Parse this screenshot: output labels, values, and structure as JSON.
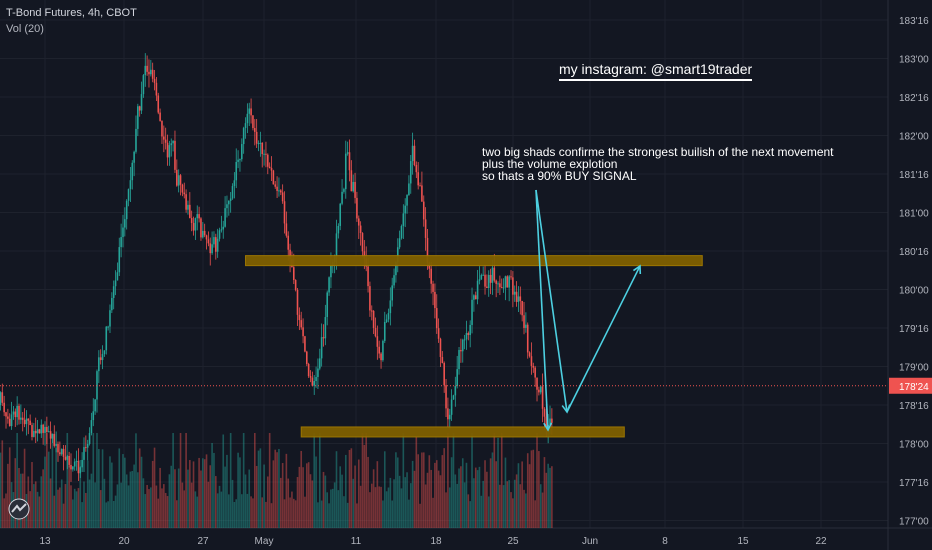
{
  "header": {
    "title": "T-Bond Futures, 4h, CBOT",
    "volume_label": "Vol (20)"
  },
  "annotations": {
    "instagram": "my instagram: @smart19trader",
    "note_lines": [
      "two big shads confirme the strongest  builish of the next movement",
      "plus the volume explotion",
      "so thats a 90% BUY SIGNAL"
    ]
  },
  "colors": {
    "background": "#131722",
    "up": "#26a69a",
    "down": "#ef5350",
    "zone": "#806000",
    "arrow": "#4dd0e1",
    "axis_text": "#b2b5be"
  },
  "chart_data": {
    "type": "candlestick",
    "title": "T-Bond Futures, 4h, CBOT",
    "price_axis_ticks": [
      "183'16",
      "183'00",
      "182'16",
      "182'00",
      "181'16",
      "181'00",
      "180'16",
      "180'00",
      "179'16",
      "179'00",
      "178'16",
      "178'00",
      "177'16",
      "177'00"
    ],
    "time_axis_ticks": [
      "13",
      "20",
      "27",
      "May",
      "11",
      "18",
      "25",
      "Jun",
      "8",
      "15",
      "22"
    ],
    "current_price": "178'24",
    "price_range": [
      176.875,
      183.25
    ],
    "zones": [
      {
        "from_tick": "May 1",
        "to_tick": "Jun 11",
        "price": 180.375
      },
      {
        "from_tick": "May 6",
        "to_tick": "Jun 4",
        "price": 178.15
      }
    ],
    "series": [
      {
        "name": "T-Bond Futures",
        "key_closes": [
          [
            "Apr 9",
            178.5
          ],
          [
            "Apr 13",
            178.1
          ],
          [
            "Apr 16",
            177.6
          ],
          [
            "Apr 19",
            180.0
          ],
          [
            "Apr 22",
            182.9
          ],
          [
            "Apr 25",
            181.4
          ],
          [
            "Apr 28",
            180.4
          ],
          [
            "May 1",
            182.2
          ],
          [
            "May 4",
            181.2
          ],
          [
            "May 7",
            178.5
          ],
          [
            "May 10",
            181.8
          ],
          [
            "May 13",
            179.1
          ],
          [
            "May 16",
            181.9
          ],
          [
            "May 19",
            178.4
          ],
          [
            "May 22",
            180.2
          ],
          [
            "May 25",
            180.1
          ],
          [
            "May 27",
            178.8
          ],
          [
            "May 28",
            178.3
          ]
        ]
      }
    ]
  }
}
